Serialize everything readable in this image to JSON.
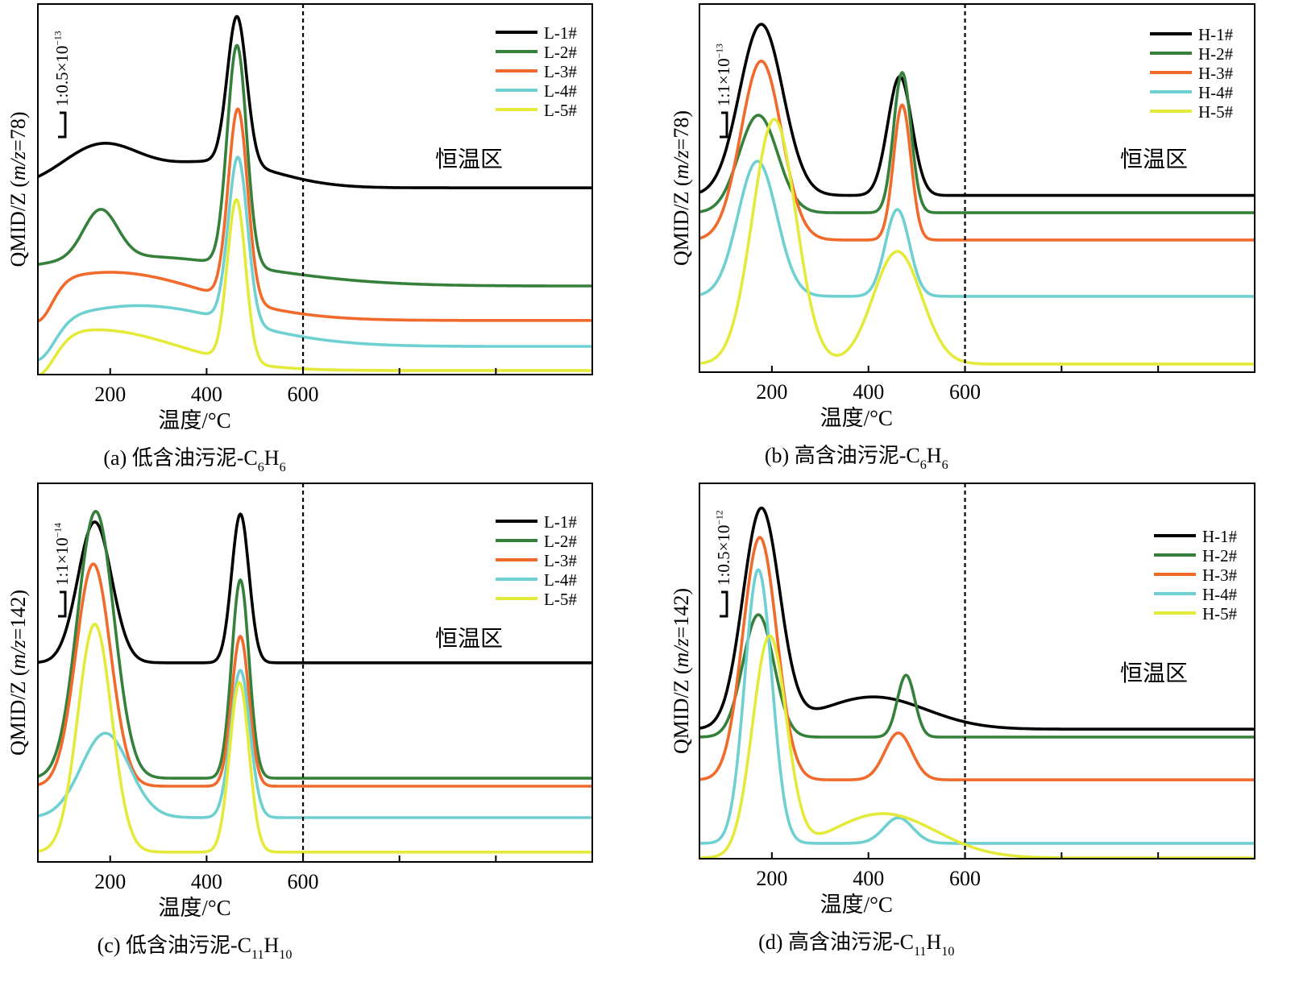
{
  "chart_data": [
    {
      "type": "line",
      "panel": "a",
      "caption": [
        {
          "t": "(a) 低含油污泥-C"
        },
        {
          "t": "6",
          "sub": true
        },
        {
          "t": "H"
        },
        {
          "t": "6",
          "sub": true
        }
      ],
      "xlabel": "温度/°C",
      "ylabel": [
        {
          "t": "QMID/Z ("
        },
        {
          "t": "m/z",
          "italic": true
        },
        {
          "t": "=78)"
        }
      ],
      "scale_label": [
        {
          "t": "1:0.5×10"
        },
        {
          "t": "−13",
          "sup": true
        }
      ],
      "annotation": "恒温区",
      "xlim": [
        50,
        1200
      ],
      "ylim": [
        0,
        100
      ],
      "xticks": [
        200,
        400,
        600,
        800,
        1000
      ],
      "xtick_labels": [
        "200",
        "400",
        "600"
      ],
      "vline": 600,
      "legend_position": "top-right",
      "curve_model": "y = baseline + sum(height * exp(-(x-center)^2 / (2*width^2)))",
      "series": [
        {
          "name": "L-1#",
          "color": "#000000",
          "baseline": 50.4,
          "peaks": [
            {
              "center": 180,
              "height": 11,
              "width": 80
            },
            {
              "center": 420,
              "height": 7,
              "width": 120
            },
            {
              "center": 463,
              "height": 39.7,
              "width": 20
            }
          ]
        },
        {
          "name": "L-2#",
          "color": "#35803a",
          "baseline": 23.9,
          "peaks": [
            {
              "center": 250,
              "height": 8,
              "width": 250
            },
            {
              "center": 180,
              "height": 13,
              "width": 35
            },
            {
              "center": 463,
              "height": 59.4,
              "width": 20
            }
          ]
        },
        {
          "name": "L-3#",
          "color": "#f06a2c",
          "baseline": 14.6,
          "peaks": [
            {
              "center": 200,
              "height": 13,
              "width": 200
            },
            {
              "center": 50,
              "height": -10,
              "width": 30
            },
            {
              "center": 465,
              "height": 51.7,
              "width": 20
            }
          ]
        },
        {
          "name": "L-4#",
          "color": "#6fd0d2",
          "baseline": 7.6,
          "peaks": [
            {
              "center": 260,
              "height": 11,
              "width": 200
            },
            {
              "center": 50,
              "height": -10,
              "width": 35
            },
            {
              "center": 465,
              "height": 44.6,
              "width": 20
            }
          ]
        },
        {
          "name": "L-5#",
          "color": "#e4ea3a",
          "baseline": 1.1,
          "peaks": [
            {
              "center": 170,
              "height": 11,
              "width": 170
            },
            {
              "center": 50,
              "height": -10,
              "width": 35
            },
            {
              "center": 462,
              "height": 43.6,
              "width": 19
            }
          ]
        }
      ]
    },
    {
      "type": "line",
      "panel": "b",
      "caption": [
        {
          "t": "(b) 高含油污泥-C"
        },
        {
          "t": "6",
          "sub": true
        },
        {
          "t": "H"
        },
        {
          "t": "6",
          "sub": true
        }
      ],
      "xlabel": "温度/°C",
      "ylabel": [
        {
          "t": "QMID/Z ("
        },
        {
          "t": "m/z",
          "italic": true
        },
        {
          "t": "=78)"
        }
      ],
      "scale_label": [
        {
          "t": "1:1×10"
        },
        {
          "t": "−13",
          "sup": true
        }
      ],
      "annotation": "恒温区",
      "xlim": [
        50,
        1200
      ],
      "ylim": [
        0,
        100
      ],
      "xticks": [
        200,
        400,
        600,
        800,
        1000
      ],
      "xtick_labels": [
        "200",
        "400",
        "600"
      ],
      "vline": 600,
      "legend_position": "top-right",
      "curve_model": "y = baseline + sum(height * exp(-(x-center)^2 / (2*width^2)))",
      "series": [
        {
          "name": "H-1#",
          "color": "#000000",
          "baseline": 48,
          "peaks": [
            {
              "center": 178,
              "height": 46.5,
              "width": 45
            },
            {
              "center": 465,
              "height": 32.3,
              "width": 25
            }
          ]
        },
        {
          "name": "H-2#",
          "color": "#35803a",
          "baseline": 43.3,
          "peaks": [
            {
              "center": 172,
              "height": 26.5,
              "width": 40
            },
            {
              "center": 470,
              "height": 38.1,
              "width": 18
            }
          ]
        },
        {
          "name": "H-3#",
          "color": "#f06a2c",
          "baseline": 35.9,
          "peaks": [
            {
              "center": 178,
              "height": 48.6,
              "width": 42
            },
            {
              "center": 470,
              "height": 36.7,
              "width": 18
            }
          ]
        },
        {
          "name": "H-4#",
          "color": "#6fd0d2",
          "baseline": 20.6,
          "peaks": [
            {
              "center": 170,
              "height": 36.7,
              "width": 40
            },
            {
              "center": 460,
              "height": 23.6,
              "width": 25
            }
          ]
        },
        {
          "name": "H-5#",
          "color": "#e4ea3a",
          "baseline": 2.2,
          "peaks": [
            {
              "center": 205,
              "height": 66.5,
              "width": 45
            },
            {
              "center": 460,
              "height": 30.6,
              "width": 50
            }
          ]
        }
      ]
    },
    {
      "type": "line",
      "panel": "c",
      "caption": [
        {
          "t": "(c) 低含油污泥-C"
        },
        {
          "t": "11",
          "sub": true
        },
        {
          "t": "H"
        },
        {
          "t": "10",
          "sub": true
        }
      ],
      "xlabel": "温度/°C",
      "ylabel": [
        {
          "t": "QMID/Z ("
        },
        {
          "t": "m/z",
          "italic": true
        },
        {
          "t": "=142)"
        }
      ],
      "scale_label": [
        {
          "t": "1:1×10"
        },
        {
          "t": "−14",
          "sup": true
        }
      ],
      "annotation": "恒温区",
      "xlim": [
        50,
        1200
      ],
      "ylim": [
        0,
        100
      ],
      "xticks": [
        200,
        400,
        600,
        800,
        1000
      ],
      "xtick_labels": [
        "200",
        "400",
        "600"
      ],
      "vline": 600,
      "legend_position": "top-right",
      "curve_model": "y = baseline + sum(height * exp(-(x-center)^2 / (2*width^2)))",
      "series": [
        {
          "name": "L-1#",
          "color": "#000000",
          "baseline": 52.6,
          "peaks": [
            {
              "center": 168,
              "height": 37.2,
              "width": 35
            },
            {
              "center": 470,
              "height": 39.3,
              "width": 18
            }
          ]
        },
        {
          "name": "L-2#",
          "color": "#35803a",
          "baseline": 22.1,
          "peaks": [
            {
              "center": 170,
              "height": 70.5,
              "width": 38
            },
            {
              "center": 470,
              "height": 52.4,
              "width": 18
            }
          ]
        },
        {
          "name": "L-3#",
          "color": "#f06a2c",
          "baseline": 20,
          "peaks": [
            {
              "center": 165,
              "height": 58.7,
              "width": 36
            },
            {
              "center": 470,
              "height": 39.6,
              "width": 18
            }
          ]
        },
        {
          "name": "L-4#",
          "color": "#6fd0d2",
          "baseline": 11.7,
          "peaks": [
            {
              "center": 190,
              "height": 22.3,
              "width": 50
            },
            {
              "center": 470,
              "height": 38.9,
              "width": 20
            }
          ]
        },
        {
          "name": "L-5#",
          "color": "#e4ea3a",
          "baseline": 2.6,
          "peaks": [
            {
              "center": 168,
              "height": 60.2,
              "width": 35
            },
            {
              "center": 468,
              "height": 44.8,
              "width": 20
            }
          ]
        }
      ]
    },
    {
      "type": "line",
      "panel": "d",
      "caption": [
        {
          "t": "(d) 高含油污泥-C"
        },
        {
          "t": "11",
          "sub": true
        },
        {
          "t": "H"
        },
        {
          "t": "10",
          "sub": true
        }
      ],
      "xlabel": "温度/°C",
      "ylabel": [
        {
          "t": "QMID/Z ("
        },
        {
          "t": "m/z",
          "italic": true
        },
        {
          "t": "=142)"
        }
      ],
      "scale_label": [
        {
          "t": "1:0.5×10"
        },
        {
          "t": "−12",
          "sup": true
        }
      ],
      "annotation": "恒温区",
      "xlim": [
        50,
        1200
      ],
      "ylim": [
        0,
        100
      ],
      "xticks": [
        200,
        400,
        600,
        800,
        1000
      ],
      "xtick_labels": [
        "200",
        "400",
        "600"
      ],
      "vline": 600,
      "legend_position": "top-right",
      "curve_model": "y = baseline + sum(height * exp(-(x-center)^2 / (2*width^2)))",
      "series": [
        {
          "name": "H-1#",
          "color": "#000000",
          "baseline": 34.5,
          "peaks": [
            {
              "center": 178,
              "height": 58,
              "width": 38
            },
            {
              "center": 410,
              "height": 8.6,
              "width": 110
            }
          ]
        },
        {
          "name": "H-2#",
          "color": "#35803a",
          "baseline": 32.4,
          "peaks": [
            {
              "center": 172,
              "height": 32.6,
              "width": 32
            },
            {
              "center": 478,
              "height": 16.5,
              "width": 18
            }
          ]
        },
        {
          "name": "H-3#",
          "color": "#f06a2c",
          "baseline": 21,
          "peaks": [
            {
              "center": 175,
              "height": 64.6,
              "width": 35
            },
            {
              "center": 462,
              "height": 12.5,
              "width": 28
            }
          ]
        },
        {
          "name": "H-4#",
          "color": "#6fd0d2",
          "baseline": 4.1,
          "peaks": [
            {
              "center": 172,
              "height": 72.9,
              "width": 28
            },
            {
              "center": 462,
              "height": 6.8,
              "width": 30
            }
          ]
        },
        {
          "name": "H-5#",
          "color": "#e4ea3a",
          "baseline": 0.2,
          "peaks": [
            {
              "center": 195,
              "height": 58,
              "width": 35
            },
            {
              "center": 430,
              "height": 11.8,
              "width": 110
            }
          ]
        }
      ]
    }
  ]
}
